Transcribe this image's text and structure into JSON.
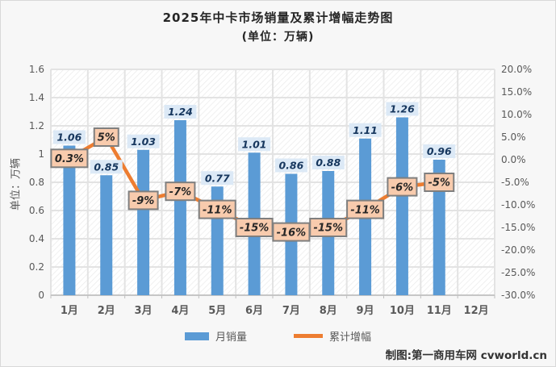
{
  "title": "2025年中卡市场销量及累计增幅走势图",
  "subtitle": "(单位：万辆)",
  "y_axis_title": "单位：万辆",
  "footer_credit": "制图:第一商用车网 cvworld.cn",
  "legend": {
    "bar_label": "月销量",
    "line_label": "累计增幅"
  },
  "colors": {
    "bar": "#5B9BD5",
    "line": "#ED7D31",
    "bar_label_bg": "#DCE9F6",
    "bar_label_text": "#17375E",
    "line_label_bg": "#F8CBAD",
    "line_label_border": "#7F7F7F",
    "line_label_text": "#262626",
    "grid": "#E3E3E3",
    "axis_line": "#C6C6C6",
    "axis_text": "#595959",
    "hatch": "#EAEAEA",
    "plot_bg": "#FFFFFF",
    "frame_bg": "#F7F7F7"
  },
  "chart_data": {
    "type": "combo-bar-line",
    "categories": [
      "1月",
      "2月",
      "3月",
      "4月",
      "5月",
      "6月",
      "7月",
      "8月",
      "9月",
      "10月",
      "11月",
      "12月"
    ],
    "series": [
      {
        "name": "月销量",
        "type": "bar",
        "axis": "left",
        "unit": "万辆",
        "values": [
          1.06,
          0.85,
          1.03,
          1.24,
          0.77,
          1.01,
          0.86,
          0.88,
          1.11,
          1.26,
          0.96,
          null
        ],
        "data_labels": [
          "1.06",
          "0.85",
          "1.03",
          "1.24",
          "0.77",
          "1.01",
          "0.86",
          "0.88",
          "1.11",
          "1.26",
          "0.96",
          ""
        ]
      },
      {
        "name": "累计增幅",
        "type": "line",
        "axis": "right",
        "unit": "%",
        "values": [
          0.3,
          5,
          -9,
          -7,
          -11,
          -15,
          -16,
          -15,
          -11,
          -6,
          -5,
          null
        ],
        "data_labels": [
          "0.3%",
          "5%",
          "-9%",
          "-7%",
          "-11%",
          "-15%",
          "-16%",
          "-15%",
          "-11%",
          "-6%",
          "-5%",
          ""
        ]
      }
    ],
    "left_axis": {
      "min": 0,
      "max": 1.6,
      "ticks": [
        "0",
        "0.2",
        "0.4",
        "0.6",
        "0.8",
        "1",
        "1.2",
        "1.4",
        "1.6"
      ],
      "title": "单位：万辆"
    },
    "right_axis": {
      "min": -30,
      "max": 20,
      "ticks": [
        "-30.0%",
        "-25.0%",
        "-20.0%",
        "-15.0%",
        "-10.0%",
        "-5.0%",
        "0.0%",
        "5.0%",
        "10.0%",
        "15.0%",
        "20.0%"
      ]
    },
    "grid": true,
    "legend_position": "bottom"
  }
}
